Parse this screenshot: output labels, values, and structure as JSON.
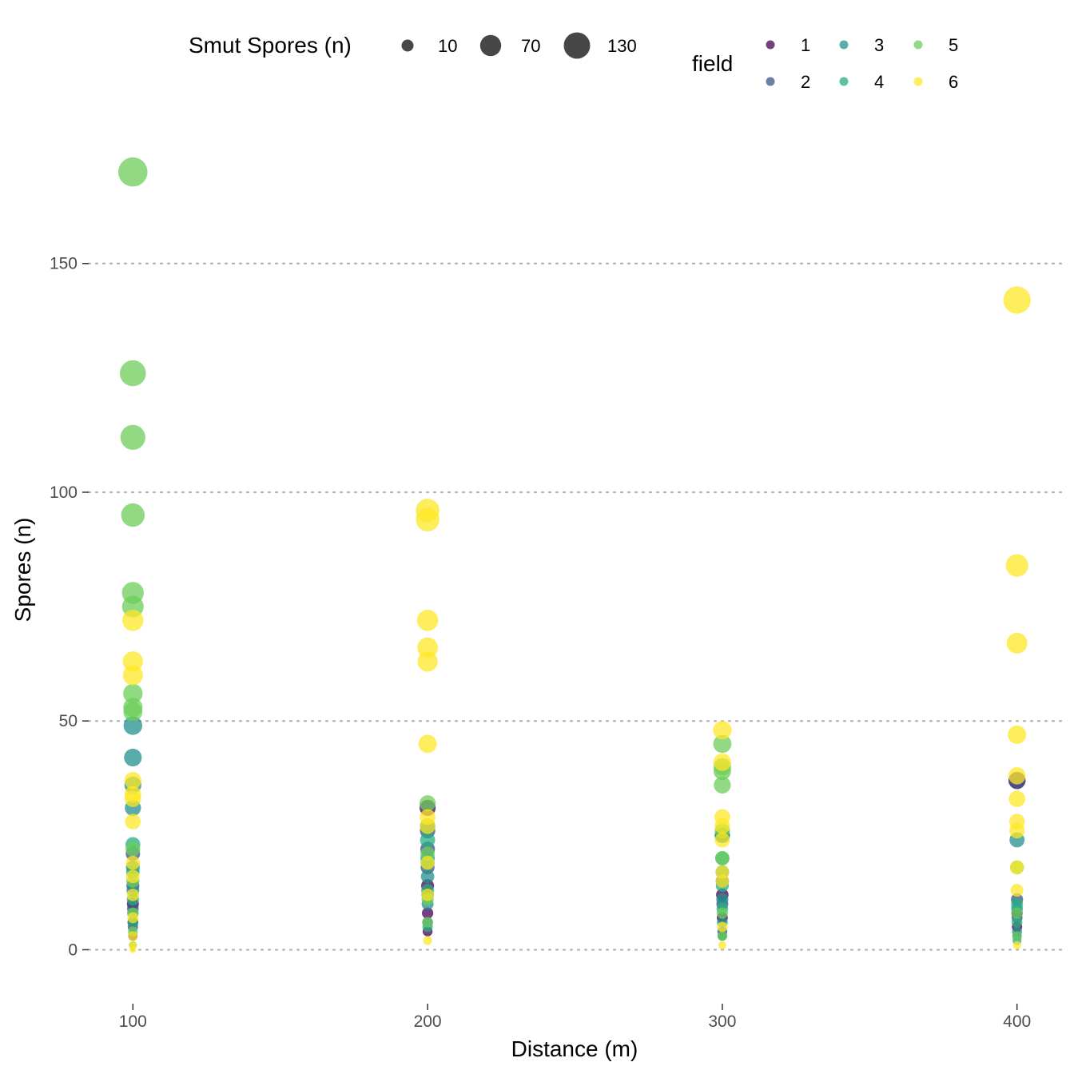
{
  "chart_data": {
    "type": "scatter",
    "title": "",
    "xlabel": "Distance (m)",
    "ylabel": "Spores (n)",
    "x_ticks": [
      100,
      200,
      300,
      400
    ],
    "y_ticks": [
      0,
      50,
      100,
      150
    ],
    "xlim": [
      85,
      415
    ],
    "ylim": [
      -9,
      180
    ],
    "grid": "horizontal-dotted",
    "size_legend": {
      "title": "Smut Spores (n)",
      "entries": [
        10,
        70,
        130
      ],
      "color": "#333333"
    },
    "color_legend": {
      "title": "field",
      "entries": [
        {
          "label": "1",
          "color": "#440154"
        },
        {
          "label": "2",
          "color": "#3B528B"
        },
        {
          "label": "3",
          "color": "#21908C"
        },
        {
          "label": "4",
          "color": "#27AD81"
        },
        {
          "label": "5",
          "color": "#6CCE59"
        },
        {
          "label": "6",
          "color": "#FDE725"
        }
      ]
    },
    "series": [
      {
        "field": "1",
        "color": "#440154",
        "x": [
          100,
          100,
          100,
          200,
          200,
          200,
          200,
          300,
          300,
          300,
          400,
          400,
          400
        ],
        "y": [
          3,
          6,
          10,
          4,
          8,
          14,
          31,
          3,
          7,
          12,
          5,
          8,
          37
        ]
      },
      {
        "field": "2",
        "color": "#3B528B",
        "x": [
          100,
          100,
          100,
          100,
          200,
          200,
          200,
          200,
          200,
          300,
          300,
          300,
          300,
          400,
          400,
          400,
          400
        ],
        "y": [
          5,
          9,
          14,
          21,
          6,
          12,
          18,
          22,
          26,
          4,
          10,
          15,
          25,
          3,
          7,
          11,
          37
        ]
      },
      {
        "field": "3",
        "color": "#21908C",
        "x": [
          100,
          100,
          100,
          100,
          100,
          100,
          100,
          200,
          200,
          200,
          200,
          300,
          300,
          300,
          300,
          400,
          400,
          400
        ],
        "y": [
          8,
          13,
          18,
          31,
          36,
          42,
          49,
          10,
          16,
          20,
          27,
          6,
          11,
          17,
          25,
          4,
          9,
          24
        ]
      },
      {
        "field": "4",
        "color": "#27AD81",
        "x": [
          100,
          100,
          100,
          100,
          200,
          200,
          200,
          200,
          300,
          300,
          300,
          300,
          400,
          400,
          400
        ],
        "y": [
          6,
          11,
          17,
          23,
          5,
          13,
          19,
          24,
          3,
          9,
          14,
          20,
          2,
          6,
          10
        ]
      },
      {
        "field": "5",
        "color": "#6CCE59",
        "x": [
          100,
          100,
          100,
          100,
          100,
          100,
          100,
          100,
          100,
          100,
          100,
          100,
          100,
          100,
          200,
          200,
          200,
          200,
          300,
          300,
          300,
          300,
          300,
          300,
          300,
          300,
          400,
          400,
          400
        ],
        "y": [
          170,
          126,
          112,
          95,
          78,
          75,
          56,
          53,
          52,
          22,
          15,
          8,
          4,
          1,
          32,
          21,
          11,
          6,
          45,
          40,
          39,
          36,
          26,
          20,
          8,
          3,
          18,
          8,
          3
        ]
      },
      {
        "field": "6",
        "color": "#FDE725",
        "x": [
          100,
          100,
          100,
          100,
          100,
          100,
          100,
          100,
          100,
          100,
          100,
          100,
          100,
          100,
          200,
          200,
          200,
          200,
          200,
          200,
          200,
          200,
          200,
          200,
          200,
          300,
          300,
          300,
          300,
          300,
          300,
          300,
          300,
          300,
          400,
          400,
          400,
          400,
          400,
          400,
          400,
          400,
          400,
          400,
          400
        ],
        "y": [
          72,
          63,
          60,
          37,
          34,
          33,
          28,
          19,
          16,
          12,
          7,
          3,
          1,
          0,
          96,
          94,
          72,
          66,
          63,
          45,
          29,
          27,
          19,
          12,
          2,
          48,
          41,
          29,
          27,
          24,
          17,
          15,
          5,
          1,
          142,
          84,
          67,
          47,
          38,
          33,
          28,
          26,
          18,
          13,
          1
        ]
      }
    ]
  }
}
